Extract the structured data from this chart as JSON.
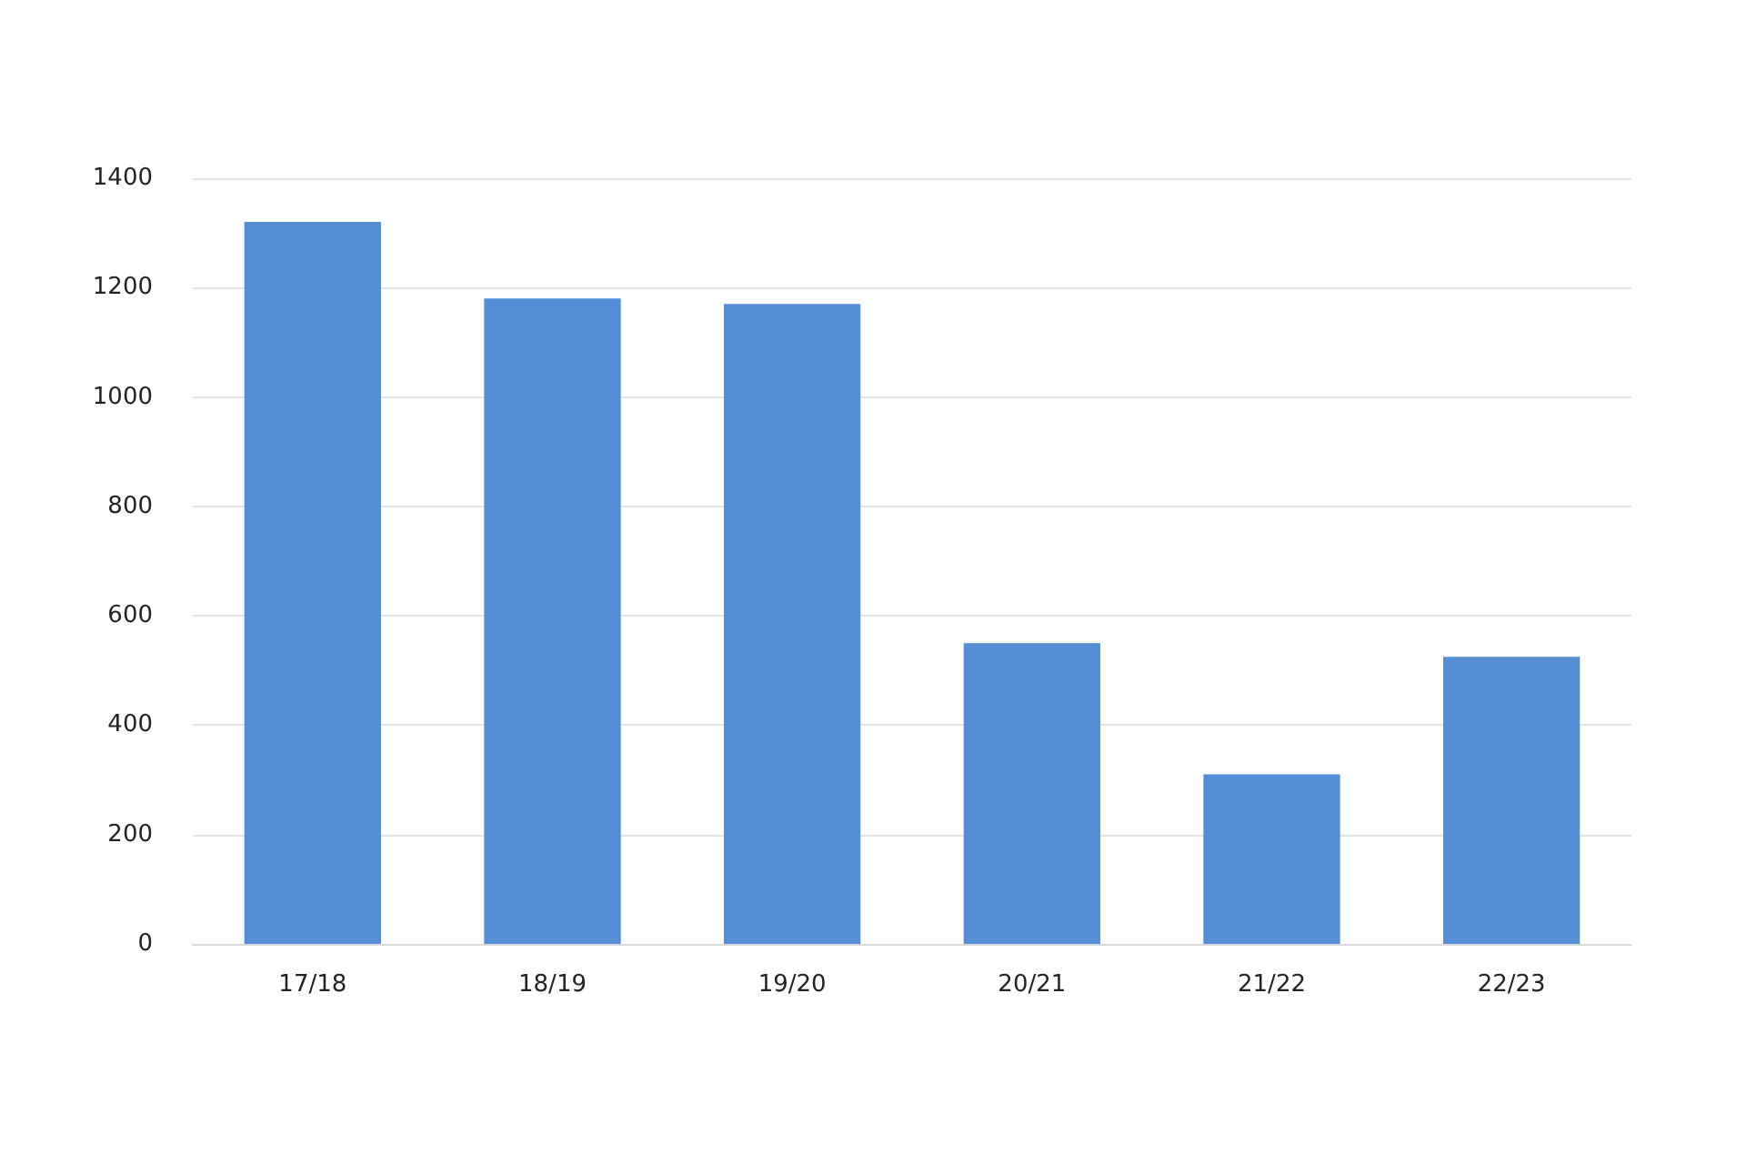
{
  "chart_data": {
    "type": "bar",
    "categories": [
      "17/18",
      "18/19",
      "19/20",
      "20/21",
      "21/22",
      "22/23"
    ],
    "values": [
      1320,
      1180,
      1170,
      550,
      310,
      525
    ],
    "color": "#558ed5",
    "ylim": [
      0,
      1400
    ],
    "yticks": [
      0,
      200,
      400,
      600,
      800,
      1000,
      1200,
      1400
    ],
    "grid": "y"
  }
}
